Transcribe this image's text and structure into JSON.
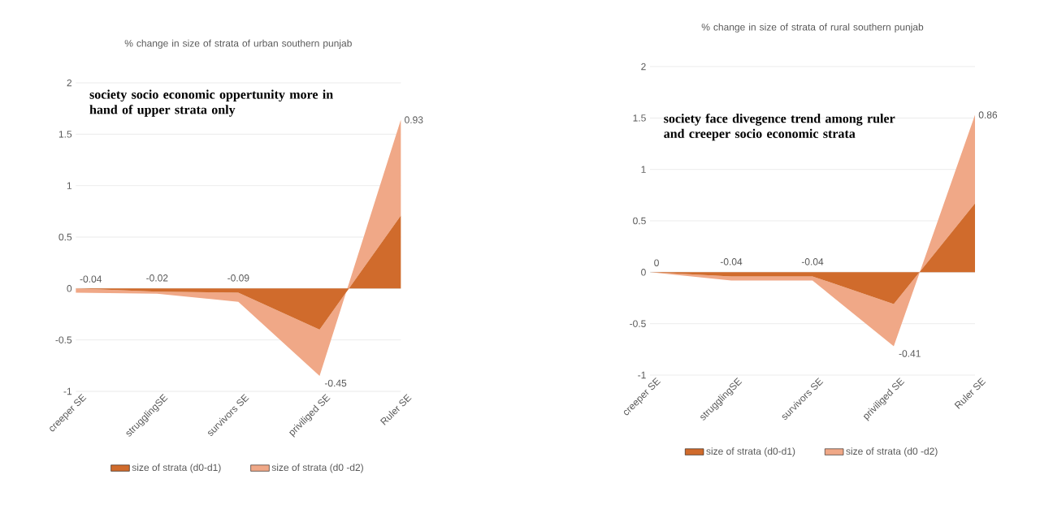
{
  "chart_data": [
    {
      "type": "area",
      "title": "% change in size  of strata of urban southern punjab",
      "stacked": true,
      "grid": "y",
      "legend": "bottom",
      "categories": [
        "creeper SE",
        "strugglingSE",
        "survivors SE",
        "priviliged SE",
        "Ruler SE"
      ],
      "ylim": [
        -1,
        2
      ],
      "yticks": [
        -1,
        -0.5,
        0,
        0.5,
        1,
        1.5,
        2
      ],
      "annotations": [
        "society socio economic oppertunity more in hand of upper strata only"
      ],
      "series": [
        {
          "name": "size of strata (d0-d1)",
          "color": "#d06b2c",
          "values": [
            0,
            -0.03,
            -0.04,
            -0.4,
            0.71
          ]
        },
        {
          "name": "size of strata (d0 -d2)",
          "color": "#f0a887",
          "values": [
            -0.04,
            -0.02,
            -0.09,
            -0.45,
            0.93
          ],
          "value_labels": [
            "-0.04",
            "-0.02",
            "-0.09",
            "-0.45",
            "0.93"
          ]
        }
      ]
    },
    {
      "type": "area",
      "title": "% change in size  of strata of rural  southern punjab",
      "stacked": true,
      "grid": "y",
      "legend": "bottom",
      "categories": [
        "creeper SE",
        "strugglingSE",
        "survivors SE",
        "priviliged SE",
        "Ruler SE"
      ],
      "ylim": [
        -1,
        2
      ],
      "yticks": [
        -1,
        -0.5,
        0,
        0.5,
        1,
        1.5,
        2
      ],
      "annotations": [
        "society face divegence trend among ruler and creeper socio economic strata"
      ],
      "series": [
        {
          "name": "size of strata (d0-d1)",
          "color": "#d06b2c",
          "values": [
            0,
            -0.04,
            -0.04,
            -0.31,
            0.67
          ]
        },
        {
          "name": "size of strata (d0 -d2)",
          "color": "#f0a887",
          "values": [
            0,
            -0.04,
            -0.04,
            -0.41,
            0.86
          ],
          "value_labels": [
            "0",
            "-0.04",
            "-0.04",
            "-0.41",
            "0.86"
          ]
        }
      ]
    }
  ]
}
